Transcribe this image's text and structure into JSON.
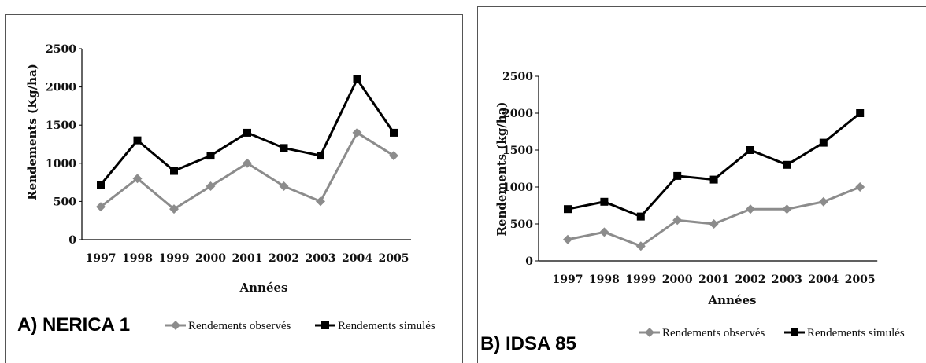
{
  "chart_data": [
    {
      "type": "line",
      "panel_title": "A) NERICA 1",
      "xlabel": "Années",
      "ylabel": "Rendements (Kg/ha)",
      "ylim": [
        0,
        2500
      ],
      "yticks": [
        "0",
        "500",
        "1000",
        "1500",
        "2000",
        "2500"
      ],
      "categories": [
        "1997",
        "1998",
        "1999",
        "2000",
        "2001",
        "2002",
        "2003",
        "2004",
        "2005"
      ],
      "series": [
        {
          "name": "Rendements observés",
          "color": "#8c8c8c",
          "marker": "diamond",
          "values": [
            430,
            800,
            400,
            700,
            1000,
            700,
            500,
            1400,
            1100
          ]
        },
        {
          "name": "Rendements simulés",
          "color": "#000000",
          "marker": "square",
          "values": [
            720,
            1300,
            900,
            1100,
            1400,
            1200,
            1100,
            2100,
            1400
          ]
        }
      ],
      "legend": "bottom"
    },
    {
      "type": "line",
      "panel_title": "B) IDSA 85",
      "xlabel": "Années",
      "ylabel": "Rendements (kg/ha)",
      "ylim": [
        0,
        2500
      ],
      "yticks": [
        "0",
        "500",
        "1000",
        "1500",
        "2000",
        "2500"
      ],
      "categories": [
        "1997",
        "1998",
        "1999",
        "2000",
        "2001",
        "2002",
        "2003",
        "2004",
        "2005"
      ],
      "series": [
        {
          "name": "Rendements observés",
          "color": "#8c8c8c",
          "marker": "diamond",
          "values": [
            290,
            390,
            200,
            550,
            500,
            700,
            700,
            800,
            1000
          ]
        },
        {
          "name": "Rendements simulés",
          "color": "#000000",
          "marker": "square",
          "values": [
            700,
            800,
            600,
            1150,
            1100,
            1500,
            1300,
            1600,
            2000
          ]
        }
      ],
      "legend": "bottom"
    }
  ]
}
